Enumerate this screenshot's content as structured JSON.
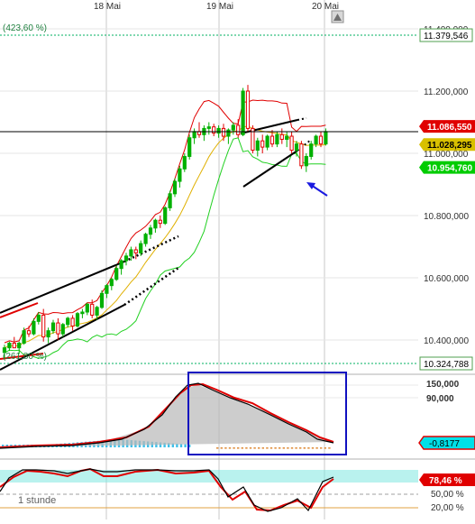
{
  "chart_data": [
    {
      "type": "candlestick",
      "x_ticks": [
        "18 Mai",
        "19 Mai",
        "20 Mai"
      ],
      "y_ticks": [
        "11.400,000",
        "11.200,000",
        "11.000,000",
        "10.800,000",
        "10.600,000",
        "10.400,000"
      ],
      "y_tick_values": [
        11400,
        11200,
        11000,
        10800,
        10600,
        10400
      ],
      "ylim": [
        10290,
        11455
      ],
      "fib_levels": [
        {
          "label": "(423,60 %)",
          "value_label": "11.379,546",
          "value": 11379.546
        },
        {
          "label": "(261,80 %)",
          "value_label": "10.324,788",
          "value": 10324.788
        }
      ],
      "price_tags": [
        {
          "label": "11.086,550",
          "value": 11086.55,
          "color": "#e00000"
        },
        {
          "label": "11.028,295",
          "value": 11028.295,
          "color": "#d8c000"
        },
        {
          "label": "10.954,760",
          "value": 10954.76,
          "color": "#00cc00"
        }
      ],
      "candles": [
        [
          10360,
          10385,
          10340,
          10375
        ],
        [
          10375,
          10395,
          10365,
          10390
        ],
        [
          10390,
          10410,
          10380,
          10375
        ],
        [
          10375,
          10395,
          10355,
          10390
        ],
        [
          10390,
          10440,
          10385,
          10430
        ],
        [
          10430,
          10445,
          10410,
          10420
        ],
        [
          10420,
          10470,
          10415,
          10460
        ],
        [
          10460,
          10490,
          10450,
          10480
        ],
        [
          10480,
          10500,
          10395,
          10410
        ],
        [
          10410,
          10440,
          10390,
          10430
        ],
        [
          10430,
          10465,
          10420,
          10455
        ],
        [
          10455,
          10470,
          10400,
          10420
        ],
        [
          10420,
          10455,
          10410,
          10450
        ],
        [
          10450,
          10475,
          10440,
          10470
        ],
        [
          10470,
          10480,
          10430,
          10445
        ],
        [
          10445,
          10490,
          10440,
          10485
        ],
        [
          10485,
          10500,
          10470,
          10490
        ],
        [
          10490,
          10520,
          10480,
          10515
        ],
        [
          10515,
          10530,
          10470,
          10480
        ],
        [
          10480,
          10510,
          10465,
          10505
        ],
        [
          10505,
          10560,
          10500,
          10550
        ],
        [
          10550,
          10580,
          10535,
          10575
        ],
        [
          10575,
          10600,
          10560,
          10595
        ],
        [
          10595,
          10640,
          10590,
          10630
        ],
        [
          10630,
          10660,
          10610,
          10655
        ],
        [
          10655,
          10680,
          10640,
          10670
        ],
        [
          10670,
          10700,
          10655,
          10690
        ],
        [
          10690,
          10700,
          10660,
          10680
        ],
        [
          10680,
          10720,
          10670,
          10710
        ],
        [
          10710,
          10745,
          10700,
          10740
        ],
        [
          10740,
          10770,
          10725,
          10760
        ],
        [
          10760,
          10790,
          10745,
          10785
        ],
        [
          10785,
          10800,
          10760,
          10775
        ],
        [
          10775,
          10830,
          10770,
          10825
        ],
        [
          10825,
          10880,
          10815,
          10870
        ],
        [
          10870,
          10920,
          10860,
          10910
        ],
        [
          10910,
          10960,
          10890,
          10950
        ],
        [
          10950,
          11000,
          10940,
          10990
        ],
        [
          10990,
          11060,
          10980,
          11050
        ],
        [
          11050,
          11080,
          11030,
          11070
        ],
        [
          11070,
          11100,
          11050,
          11060
        ],
        [
          11060,
          11090,
          11040,
          11080
        ],
        [
          11080,
          11100,
          11060,
          11085
        ],
        [
          11085,
          11095,
          11055,
          11065
        ],
        [
          11065,
          11090,
          11050,
          11080
        ],
        [
          11080,
          11095,
          11040,
          11055
        ],
        [
          11055,
          11080,
          11030,
          11075
        ],
        [
          11075,
          11100,
          11060,
          11090
        ],
        [
          11090,
          11110,
          11050,
          11060
        ],
        [
          11060,
          11210,
          11055,
          11200
        ],
        [
          11200,
          11220,
          11070,
          11080
        ],
        [
          11080,
          11090,
          11000,
          11010
        ],
        [
          11010,
          11050,
          10990,
          11040
        ],
        [
          11040,
          11060,
          11000,
          11020
        ],
        [
          11020,
          11060,
          11010,
          11055
        ],
        [
          11055,
          11075,
          11020,
          11030
        ],
        [
          11030,
          11070,
          11020,
          11060
        ],
        [
          11060,
          11080,
          11030,
          11045
        ],
        [
          11045,
          11070,
          11020,
          11055
        ],
        [
          11055,
          11070,
          11000,
          11010
        ],
        [
          11010,
          11040,
          10990,
          11030
        ],
        [
          11030,
          11040,
          10950,
          10960
        ],
        [
          10960,
          11000,
          10940,
          10990
        ],
        [
          10990,
          11040,
          10980,
          11030
        ],
        [
          11030,
          11060,
          11020,
          11055
        ],
        [
          11055,
          11070,
          11020,
          11030
        ],
        [
          11030,
          11080,
          11025,
          11070
        ]
      ],
      "annotations": [
        "trendline",
        "dotted projection",
        "blue arrow"
      ]
    },
    {
      "type": "indicator",
      "y_ticks": [
        "150,000",
        "90,000"
      ],
      "value_tag": "-0,8177"
    },
    {
      "type": "indicator",
      "label": "1 stunde",
      "y_ticks": [
        "50,00 %",
        "20,00 %"
      ],
      "value_tag": "78,46 %"
    }
  ],
  "colors": {
    "grid": "#00b060",
    "up": "#00b000",
    "down": "#e00000",
    "bb_upper": "#e00000",
    "bb_middle": "#e0b000",
    "bb_lower": "#20d020",
    "histogram": "#40c0e8",
    "stoch_band": "#80e8e0",
    "annotation_box": "#1010c0"
  }
}
